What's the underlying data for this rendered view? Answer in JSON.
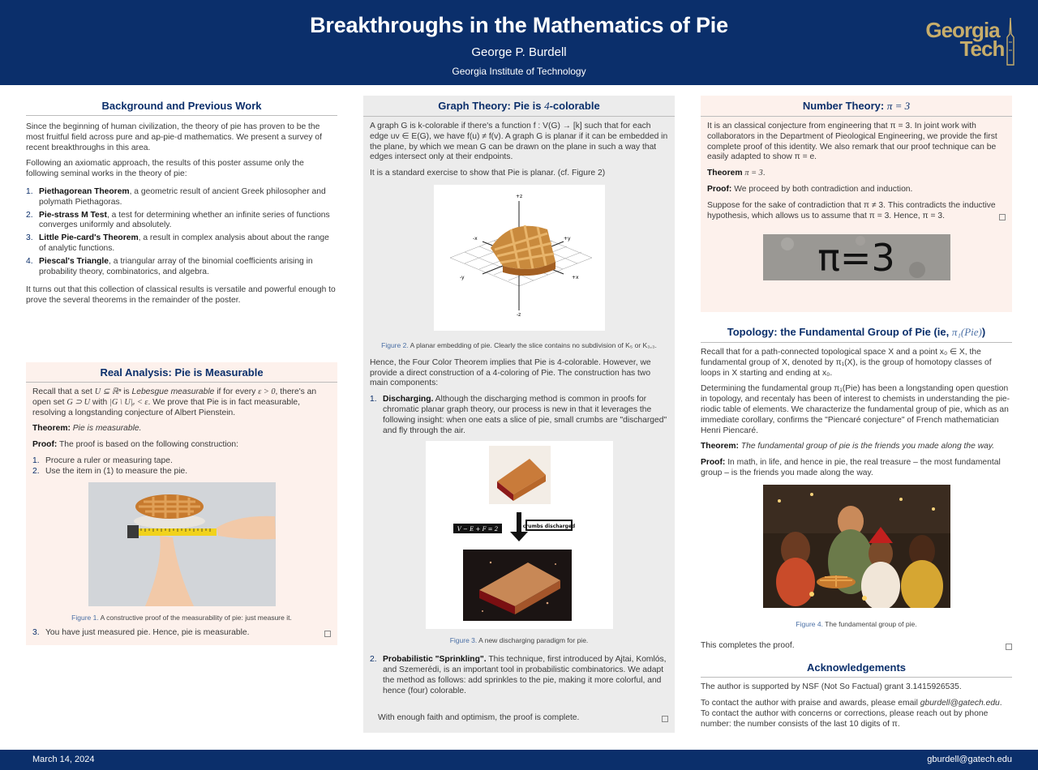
{
  "header": {
    "title": "Breakthroughs in the Mathematics of Pie",
    "author": "George P. Burdell",
    "institution": "Georgia Institute of Technology",
    "logo_line1": "Georgia",
    "logo_line2": "Tech"
  },
  "footer": {
    "date": "March 14, 2024",
    "email": "gburdell@gatech.edu"
  },
  "background": {
    "title": "Background and Previous Work",
    "p1": "Since the beginning of human civilization, the theory of pie has proven to be the most fruitful field across pure and ap-pie-d mathematics. We present a survey of recent breakthroughs in this area.",
    "p2": "Following an axiomatic approach, the results of this poster assume only the following seminal works in the theory of pie:",
    "items": [
      {
        "num": "1.",
        "name": "Piethagorean Theorem",
        "text": ", a geometric result of ancient Greek philosopher and polymath Piethagoras."
      },
      {
        "num": "2.",
        "name": "Pie-strass M Test",
        "text": ", a test for determining whether an infinite series of functions converges uniformly and absolutely."
      },
      {
        "num": "3.",
        "name": "Little Pie-card's Theorem",
        "text": ", a result in complex analysis about about the range of analytic functions."
      },
      {
        "num": "4.",
        "name": "Piescal's Triangle",
        "text": ", a triangular array of the binomial coefficients arising in probability theory, combinatorics, and algebra."
      }
    ],
    "p3": "It turns out that this collection of classical results is versatile and powerful enough to prove the several theorems in the remainder of the poster."
  },
  "real_analysis": {
    "title": "Real Analysis: Pie is Measurable",
    "p1a": "Recall that a set ",
    "p1m1": "U ⊆ ℝⁿ",
    "p1b": " is ",
    "p1c": "Lebesgue measurable",
    "p1d": " if for every ",
    "p1m2": "ε > 0",
    "p1e": ", there's an open set ",
    "p1m3": "G ⊃ U",
    "p1f": " with ",
    "p1m4": "|G \\ U|ₑ < ε",
    "p1g": ". We prove that Pie is in fact measurable, resolving a longstanding conjecture of Albert Pienstein.",
    "thm_label": "Theorem:",
    "thm_text": "Pie is measurable.",
    "proof_label": "Proof:",
    "proof_text": "The proof is based on the following construction:",
    "steps": [
      {
        "num": "1.",
        "text": "Procure a ruler or measuring tape."
      },
      {
        "num": "2.",
        "text": "Use the item in (1) to measure the pie."
      }
    ],
    "fig_label": "Figure 1.",
    "fig_caption": "A constructive proof of the measurability of pie: just measure it.",
    "step3_num": "3.",
    "step3": "You have just measured pie. Hence, pie is measurable."
  },
  "graph_theory": {
    "title_a": "Graph Theory: Pie is ",
    "title_b": "4",
    "title_c": "-colorable",
    "p1": "A graph G is k-colorable if there's a function f : V(G) → [k] such that for each edge uv ∈ E(G), we have f(u) ≠ f(v). A graph G is planar if it can be embedded in the plane, by which we mean G can be drawn on the plane in such a way that edges intersect only at their endpoints.",
    "p2": "It is a standard exercise to show that Pie is planar. (cf. Figure 2)",
    "axis_labels": [
      "+z",
      "-z",
      "+x",
      "-x",
      "+y",
      "-y"
    ],
    "fig2_label": "Figure 2.",
    "fig2_caption": "A planar embedding of pie. Clearly the slice contains no subdivision of K₅ or K₃,₃.",
    "p3": "Hence, the Four Color Theorem implies that Pie is 4-colorable. However, we provide a direct construction of a 4-coloring of Pie. The construction has two main components:",
    "c1_num": "1.",
    "c1_name": "Discharging.",
    "c1_text": " Although the discharging method is common in proofs for chromatic planar graph theory, our process is new in that it leverages the following insight: when one eats a slice of pie, small crumbs are \"discharged\" and fly through the air.",
    "euler": "V − E + F = 2",
    "crumbs": "crumbs discharged",
    "fig3_label": "Figure 3.",
    "fig3_caption": "A new discharging paradigm for pie.",
    "c2_num": "2.",
    "c2_name": "Probabilistic \"Sprinkling\".",
    "c2_text": " This technique, first introduced by Ajtai, Komlós, and Szemerédi, is an important tool in probabilistic combinatorics. We adapt the method as follows: add sprinkles to the pie, making it more colorful, and hence (four) colorable.",
    "p4": "With enough faith and optimism, the proof is complete."
  },
  "number_theory": {
    "title_a": "Number Theory: ",
    "title_b": "π = 3",
    "p1": "It is an classical conjecture from engineering that π = 3. In joint work with collaborators in the Department of Pieological Engineering, we provide the first complete proof of this identity. We also remark that our proof technique can be easily adapted to show π = e.",
    "thm_label": "Theorem",
    "thm_math": "π = 3",
    "proof_label": "Proof:",
    "proof_text": "We proceed by both contradiction and induction.",
    "p2": "Suppose for the sake of contradiction that π ≠ 3. This contradicts the inductive hypothesis, which allows us to assume that π = 3. Hence, π = 3.",
    "chalk": "π=3"
  },
  "topology": {
    "title_a": "Topology: the Fundamental Group of Pie (ie, ",
    "title_b": "π₁(Pie)",
    "title_c": ")",
    "p1": "Recall that for a path-connected topological space X and a point x₀ ∈ X, the fundamental group of X, denoted by π₁(X), is the group of homotopy classes of loops in X starting and ending at x₀.",
    "p2": "Determining the fundamental group π₁(Pie) has been a longstanding open question in topology, and recentaly has been of interest to chemists in understanding the pie-riodic table of elements. We characterize the fundamental group of pie, which as an immediate corollary, confirms the \"Piencaré conjecture\" of French mathematician Henri Piencaré.",
    "thm_label": "Theorem:",
    "thm_text": "The fundamental group of pie is the friends you made along the way.",
    "proof_label": "Proof:",
    "proof_text": "In math, in life, and hence in pie, the real treasure – the most fundamental group – is the friends you made along the way.",
    "fig4_label": "Figure 4.",
    "fig4_caption": "The fundamental group of pie.",
    "closing": "This completes the proof."
  },
  "acknowledgements": {
    "title": "Acknowledgements",
    "p1": "The author is supported by NSF (Not So Factual) grant 3.1415926535.",
    "p2a": "To contact the author with praise and awards, please email ",
    "p2b": "gburdell@gatech.edu",
    "p2c": ". To contact the author with concerns or corrections, please reach out by phone number: the number consists of the last 10 digits of π."
  }
}
